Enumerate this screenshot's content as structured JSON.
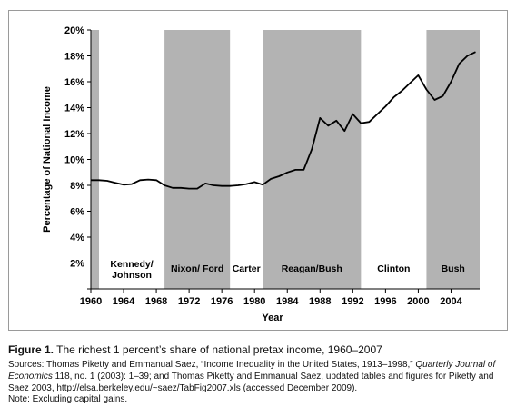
{
  "chart_data": {
    "type": "line",
    "xlabel": "Year",
    "ylabel": "Percentage of National Income",
    "xlim": [
      1960,
      2007.5
    ],
    "ylim": [
      0,
      20
    ],
    "x_ticks": [
      1960,
      1964,
      1968,
      1972,
      1976,
      1980,
      1984,
      1988,
      1992,
      1996,
      2000,
      2004
    ],
    "y_ticks": [
      0,
      2,
      4,
      6,
      8,
      10,
      12,
      14,
      16,
      18,
      20
    ],
    "y_tick_labels": [
      "",
      "2%",
      "4%",
      "6%",
      "8%",
      "10%",
      "12%",
      "14%",
      "16%",
      "18%",
      "20%"
    ],
    "shaded_bands": [
      {
        "label": "Kennedy/ Johnson",
        "start": 1961,
        "end": 1969,
        "shaded": false
      },
      {
        "label": "Nixon/ Ford",
        "start": 1969,
        "end": 1977,
        "shaded": true
      },
      {
        "label": "Carter",
        "start": 1977,
        "end": 1981,
        "shaded": false
      },
      {
        "label": "Reagan/Bush",
        "start": 1981,
        "end": 1993,
        "shaded": true
      },
      {
        "label": "Clinton",
        "start": 1993,
        "end": 2001,
        "shaded": false
      },
      {
        "label": "Bush",
        "start": 2001,
        "end": 2007.5,
        "shaded": true
      }
    ],
    "lead_band": {
      "start": 1960,
      "end": 1961,
      "shaded": true
    },
    "series": [
      {
        "x": [
          1960,
          1961,
          1962,
          1963,
          1964,
          1965,
          1966,
          1967,
          1968,
          1969,
          1970,
          1971,
          1972,
          1973,
          1974,
          1975,
          1976,
          1977,
          1978,
          1979,
          1980,
          1981,
          1982,
          1983,
          1984,
          1985,
          1986,
          1987,
          1988,
          1989,
          1990,
          1991,
          1992,
          1993,
          1994,
          1995,
          1996,
          1997,
          1998,
          1999,
          2000,
          2001,
          2002,
          2003,
          2004,
          2005,
          2006,
          2007
        ],
        "values": [
          8.4,
          8.4,
          8.35,
          8.2,
          8.05,
          8.1,
          8.4,
          8.45,
          8.4,
          8.0,
          7.8,
          7.8,
          7.75,
          7.75,
          8.15,
          8.0,
          7.95,
          7.95,
          8.0,
          8.1,
          8.25,
          8.05,
          8.5,
          8.7,
          9.0,
          9.2,
          9.2,
          10.8,
          13.2,
          12.6,
          13.0,
          12.2,
          13.5,
          12.8,
          12.9,
          13.5,
          14.1,
          14.8,
          15.3,
          15.9,
          16.5,
          15.4,
          14.6,
          14.9,
          16.0,
          17.4,
          18.0,
          18.3
        ]
      }
    ],
    "grid": false,
    "colors": {
      "shade": "#b3b3b3",
      "line": "#000000"
    }
  },
  "caption": {
    "figure_label": "Figure 1.",
    "title": " The richest 1 percent’s share of national pretax income, 1960–2007",
    "sources_prefix": "Sources: Thomas Piketty and Emmanual Saez, “Income Inequality in the United States, 1913–1998,” ",
    "sources_journal": "Quarterly Journal of Economics",
    "sources_rest": " 118, no. 1 (2003): 1–39; and Thomas Piketty and Emmanual Saez, updated tables and figures for Piketty and Saez 2003, http://elsa.berkeley.edu/~saez/TabFig2007.xls (accessed December 2009).",
    "note": "Note: Excluding capital gains."
  }
}
